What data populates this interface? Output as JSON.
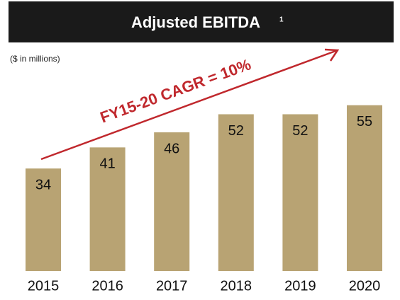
{
  "chart_data": {
    "type": "bar",
    "title": "Adjusted EBITDA",
    "title_superscript": "1",
    "subtitle": "($ in millions)",
    "annotation": "FY15-20 CAGR = 10%",
    "categories": [
      "2015",
      "2016",
      "2017",
      "2018",
      "2019",
      "2020"
    ],
    "values": [
      34,
      41,
      46,
      52,
      52,
      55
    ],
    "color": "#b8a373",
    "annotation_color": "#c0282d"
  }
}
